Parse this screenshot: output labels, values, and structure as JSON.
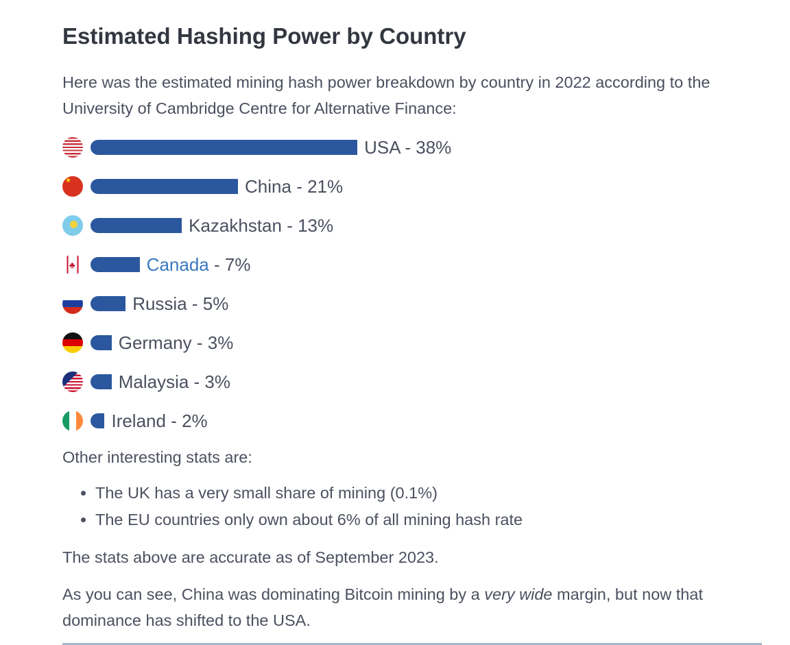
{
  "title": "Estimated Hashing Power by Country",
  "intro": "Here was the estimated mining hash power breakdown by country in 2022 according to the University of Cambridge Centre for Alternative Finance:",
  "chart_data": {
    "type": "bar",
    "orientation": "horizontal",
    "categories": [
      "USA",
      "China",
      "Kazakhstan",
      "Canada",
      "Russia",
      "Germany",
      "Malaysia",
      "Ireland"
    ],
    "values": [
      38,
      21,
      13,
      7,
      5,
      3,
      3,
      2
    ],
    "labels": [
      "USA - 38%",
      "China - 21%",
      "Kazakhstan - 13%",
      "Canada - 7%",
      "Russia - 5%",
      "Germany - 3%",
      "Malaysia - 3%",
      "Ireland - 2%"
    ],
    "unit": "%",
    "bar_color": "#2b579e"
  },
  "other_heading": "Other interesting stats are:",
  "bullets": [
    "The UK has a very small share of mining (0.1%)",
    "The EU countries only own about 6% of all mining hash rate"
  ],
  "accuracy": "The stats above are accurate as of September 2023.",
  "closing": {
    "before": "As you can see, China was dominating Bitcoin mining by a ",
    "emphasis": "very wide",
    "after": " margin, but now that dominance has shifted to the USA."
  }
}
